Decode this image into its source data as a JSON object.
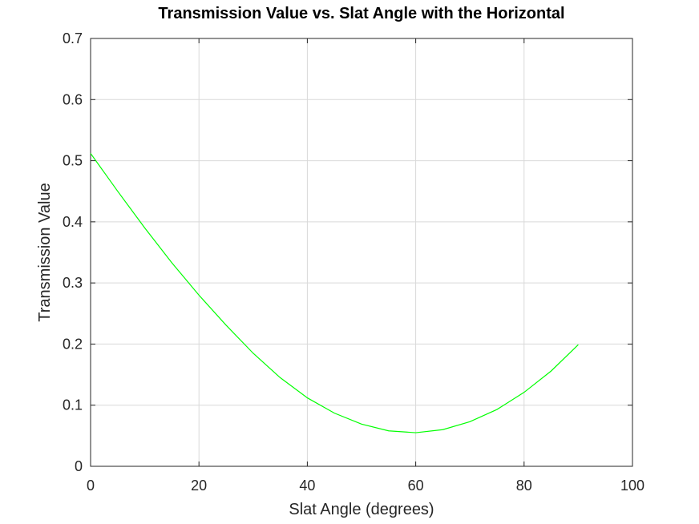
{
  "chart_data": {
    "type": "line",
    "title": "Transmission Value vs. Slat Angle with the Horizontal",
    "xlabel": "Slat Angle (degrees)",
    "ylabel": "Transmission Value",
    "xlim": [
      0,
      100
    ],
    "ylim": [
      0,
      0.7
    ],
    "xticks": [
      "0",
      "20",
      "40",
      "60",
      "80",
      "100"
    ],
    "yticks": [
      "0",
      "0.1",
      "0.2",
      "0.3",
      "0.4",
      "0.5",
      "0.6",
      "0.7"
    ],
    "grid": true,
    "series": [
      {
        "color": "#00ff00",
        "x": [
          0,
          5,
          10,
          15,
          20,
          25,
          30,
          35,
          40,
          45,
          50,
          55,
          60,
          65,
          70,
          75,
          80,
          85,
          90
        ],
        "y": [
          0.512,
          0.45,
          0.39,
          0.333,
          0.28,
          0.231,
          0.185,
          0.145,
          0.112,
          0.087,
          0.069,
          0.058,
          0.055,
          0.06,
          0.073,
          0.093,
          0.121,
          0.156,
          0.199
        ]
      }
    ]
  }
}
